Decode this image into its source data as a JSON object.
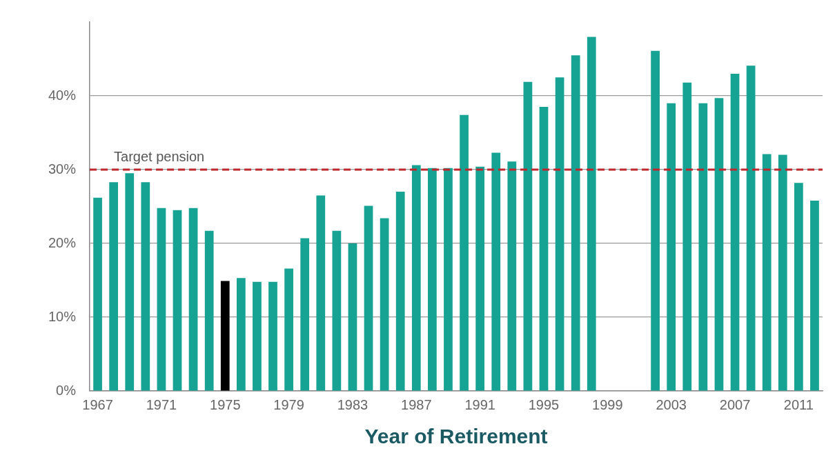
{
  "chart_data": {
    "type": "bar",
    "xlabel": "Year of Retirement",
    "categories": [
      "1967",
      null,
      null,
      null,
      "1971",
      null,
      null,
      null,
      "1975",
      null,
      null,
      null,
      "1979",
      null,
      null,
      null,
      "1983",
      null,
      null,
      null,
      "1987",
      null,
      null,
      null,
      "1991",
      null,
      null,
      null,
      "1995",
      null,
      null,
      null,
      "1999",
      null,
      null,
      null,
      "2003",
      null,
      null,
      null,
      "2007",
      null,
      null,
      null,
      "2011",
      null
    ],
    "values": [
      26.2,
      28.3,
      29.5,
      28.3,
      24.8,
      24.5,
      24.8,
      21.7,
      14.9,
      15.3,
      14.8,
      14.8,
      16.6,
      20.7,
      26.5,
      21.7,
      20.0,
      25.1,
      23.4,
      27.0,
      30.6,
      30.2,
      30.2,
      37.4,
      30.4,
      32.3,
      31.1,
      41.9,
      38.5,
      42.5,
      45.5,
      48.0,
      null,
      null,
      null,
      46.1,
      39.0,
      41.8,
      39.0,
      39.7,
      43.0,
      44.1,
      32.1,
      32.0,
      28.2,
      25.8
    ],
    "colors": [
      "#17a394",
      "#17a394",
      "#17a394",
      "#17a394",
      "#17a394",
      "#17a394",
      "#17a394",
      "#17a394",
      "#000000",
      "#17a394",
      "#17a394",
      "#17a394",
      "#17a394",
      "#17a394",
      "#17a394",
      "#17a394",
      "#17a394",
      "#17a394",
      "#17a394",
      "#17a394",
      "#17a394",
      "#17a394",
      "#17a394",
      "#17a394",
      "#17a394",
      "#17a394",
      "#17a394",
      "#17a394",
      "#17a394",
      "#17a394",
      "#17a394",
      "#17a394",
      "#17a394",
      "#17a394",
      "#000000",
      "#17a394",
      "#17a394",
      "#17a394",
      "#17a394",
      "#17a394",
      "#17a394",
      "#17a394",
      "#17a394",
      "#17a394",
      "#17a394",
      "#17a394"
    ],
    "ylim": [
      0,
      50
    ],
    "yticks": [
      {
        "value": 0,
        "label": "0%"
      },
      {
        "value": 10,
        "label": "10%"
      },
      {
        "value": 20,
        "label": "20%"
      },
      {
        "value": 30,
        "label": "30%"
      },
      {
        "value": 40,
        "label": "40%"
      }
    ],
    "ref_lines": [
      {
        "axis": "y",
        "value": 30,
        "label": "Target pension",
        "color": "#c0262d",
        "line_style": "dashed"
      }
    ],
    "grid": "y",
    "legend": false
  }
}
